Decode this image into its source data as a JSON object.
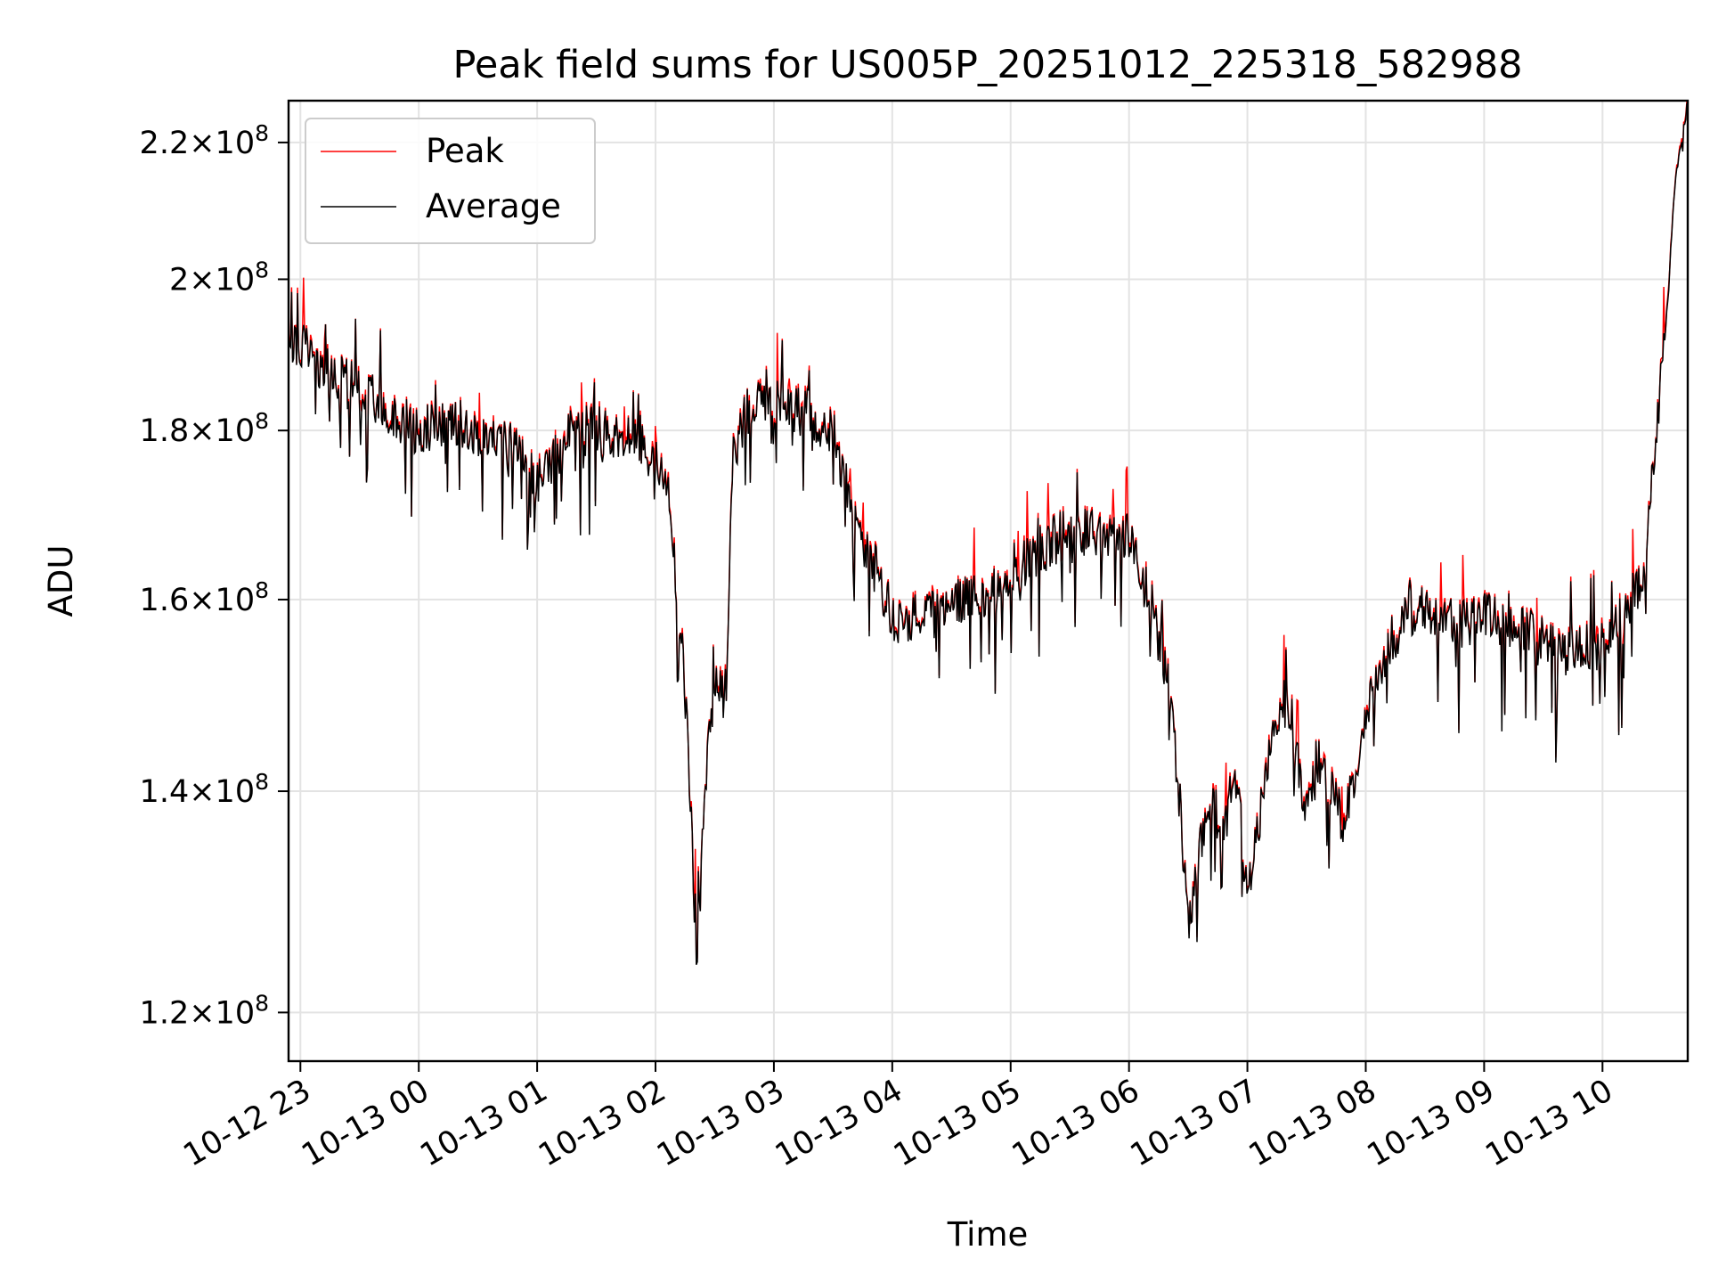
{
  "chart_data": {
    "type": "line",
    "title": "Peak field sums for US005P_20251012_225318_582988",
    "xlabel": "Time",
    "ylabel": "ADU",
    "yscale": "log",
    "ylim": [
      116000000,
      226500000
    ],
    "xlim": [
      -0.1,
      11.72
    ],
    "grid": true,
    "legend_position": "upper-left",
    "x_ticks": [
      {
        "value": 0,
        "label": "10-12 23"
      },
      {
        "value": 1,
        "label": "10-13 00"
      },
      {
        "value": 2,
        "label": "10-13 01"
      },
      {
        "value": 3,
        "label": "10-13 02"
      },
      {
        "value": 4,
        "label": "10-13 03"
      },
      {
        "value": 5,
        "label": "10-13 04"
      },
      {
        "value": 6,
        "label": "10-13 05"
      },
      {
        "value": 7,
        "label": "10-13 06"
      },
      {
        "value": 8,
        "label": "10-13 07"
      },
      {
        "value": 9,
        "label": "10-13 08"
      },
      {
        "value": 10,
        "label": "10-13 09"
      },
      {
        "value": 11,
        "label": "10-13 10"
      }
    ],
    "y_ticks": [
      {
        "value": 120000000,
        "mantissa": "1.2",
        "base": "10",
        "exp": "8"
      },
      {
        "value": 140000000,
        "mantissa": "1.4",
        "base": "10",
        "exp": "8"
      },
      {
        "value": 160000000,
        "mantissa": "1.6",
        "base": "10",
        "exp": "8"
      },
      {
        "value": 180000000,
        "mantissa": "1.8",
        "base": "10",
        "exp": "8"
      },
      {
        "value": 200000000,
        "mantissa": "2",
        "base": "10",
        "exp": "8"
      },
      {
        "value": 220000000,
        "mantissa": "2.2",
        "base": "10",
        "exp": "8"
      }
    ],
    "series": [
      {
        "name": "Peak",
        "color": "#ff0000"
      },
      {
        "name": "Average",
        "color": "#000000"
      }
    ],
    "trend_hours": [
      -0.1,
      0.0,
      0.2,
      0.5,
      0.8,
      1.0,
      1.3,
      1.6,
      1.8,
      2.0,
      2.3,
      2.6,
      2.9,
      3.1,
      3.2,
      3.25,
      3.35,
      3.42,
      3.5,
      3.6,
      3.65,
      3.75,
      4.0,
      4.3,
      4.5,
      4.7,
      4.9,
      5.0,
      5.3,
      5.6,
      5.9,
      6.2,
      6.5,
      6.8,
      7.0,
      7.2,
      7.35,
      7.4,
      7.5,
      7.6,
      7.7,
      7.8,
      7.9,
      8.0,
      8.2,
      8.3,
      8.5,
      8.6,
      8.8,
      8.9,
      9.0,
      9.1,
      9.2,
      9.4,
      9.6,
      9.8,
      10.0,
      10.2,
      10.4,
      10.6,
      10.8,
      11.0,
      11.2,
      11.35,
      11.45,
      11.55,
      11.6,
      11.65,
      11.72
    ],
    "trend_values": [
      192000000,
      191000000,
      188000000,
      185000000,
      182000000,
      180000000,
      181000000,
      179000000,
      178000000,
      173000000,
      180000000,
      180000000,
      179000000,
      174000000,
      158000000,
      150000000,
      125000000,
      140000000,
      152000000,
      150000000,
      176000000,
      182000000,
      184000000,
      182000000,
      180000000,
      168000000,
      162000000,
      158000000,
      158000000,
      160000000,
      161000000,
      165000000,
      168000000,
      167000000,
      167000000,
      159000000,
      150000000,
      142000000,
      128000000,
      134000000,
      140000000,
      136000000,
      142000000,
      130000000,
      145000000,
      150000000,
      138000000,
      143000000,
      137000000,
      140000000,
      147000000,
      152000000,
      155000000,
      159000000,
      158000000,
      157000000,
      158000000,
      157000000,
      156000000,
      155000000,
      154000000,
      156000000,
      158000000,
      162000000,
      180000000,
      196000000,
      211000000,
      219000000,
      226000000
    ],
    "noise_amplitude": 0.018,
    "random_seed": 20251012
  }
}
